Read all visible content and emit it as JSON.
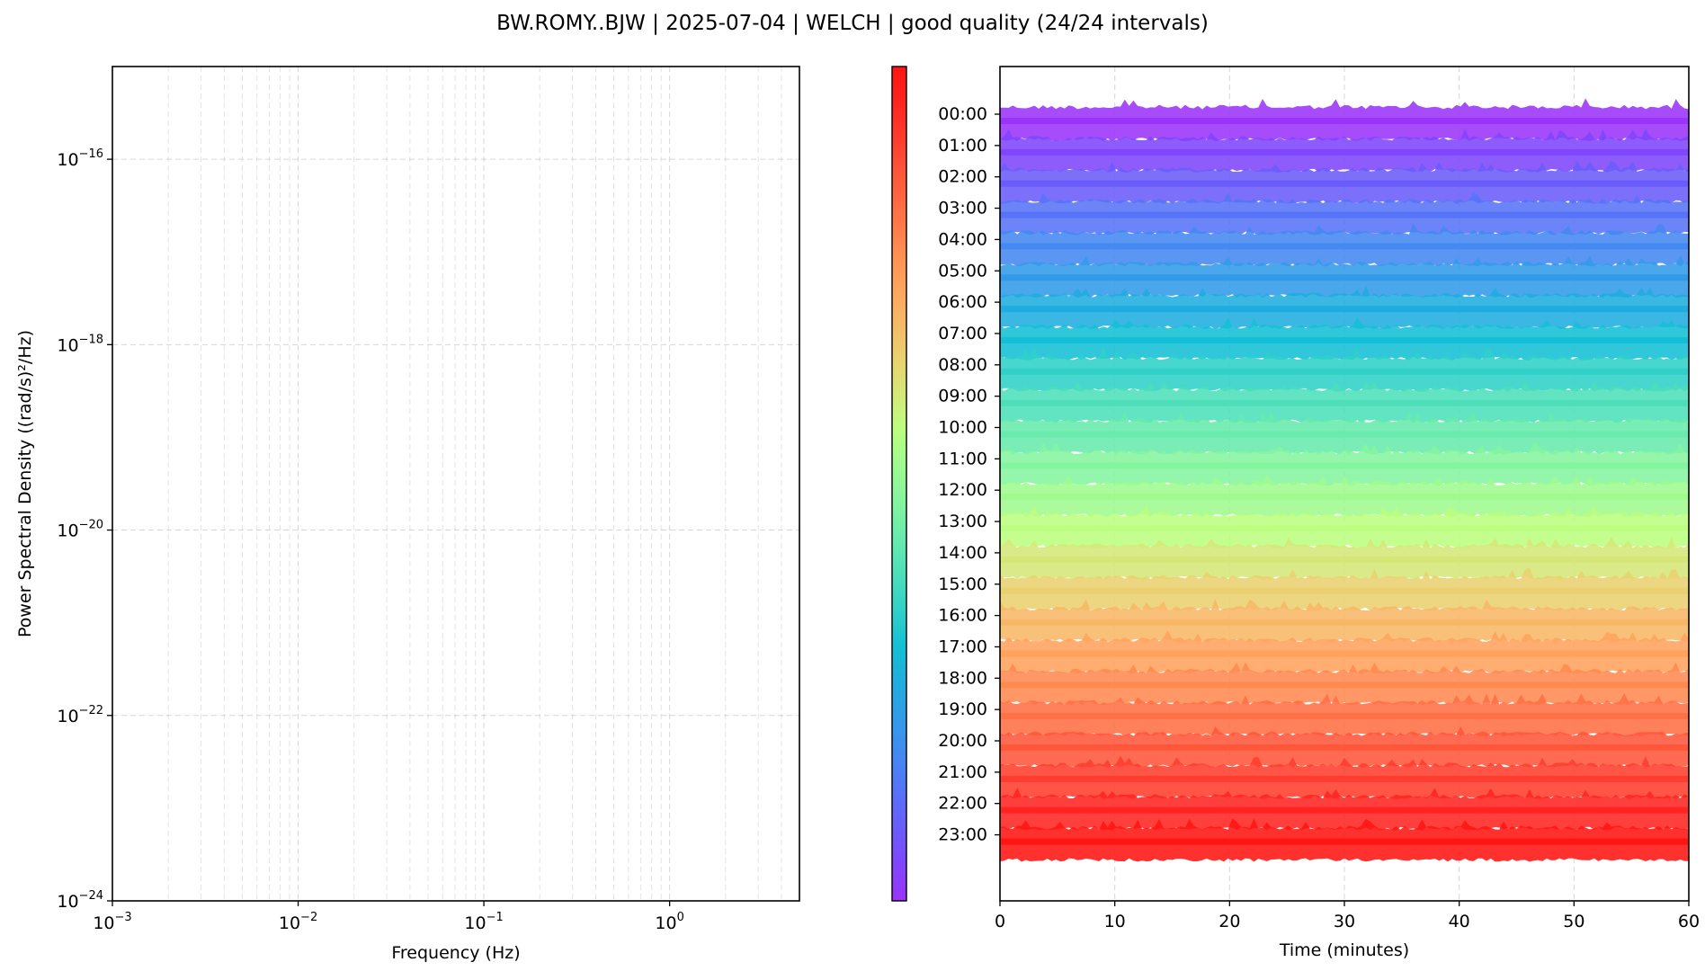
{
  "title": "BW.ROMY..BJW | 2025-07-04 | WELCH | good quality (24/24 intervals)",
  "chart_data": [
    {
      "type": "line",
      "panel": "psd",
      "xlabel": "Frequency (Hz)",
      "ylabel": "Power Spectral Density ((rad/s)²/Hz)",
      "x_scale": "log",
      "y_scale": "log",
      "xlim": [
        0.001,
        5
      ],
      "ylim": [
        1e-24,
        1e-15
      ],
      "x_ticks": [
        {
          "value": 0.001,
          "base": "10",
          "exp": "−3"
        },
        {
          "value": 0.01,
          "base": "10",
          "exp": "−2"
        },
        {
          "value": 0.1,
          "base": "10",
          "exp": "−1"
        },
        {
          "value": 1,
          "base": "10",
          "exp": "0"
        }
      ],
      "y_ticks": [
        {
          "value": 1e-16,
          "base": "10",
          "exp": "−16"
        },
        {
          "value": 1e-18,
          "base": "10",
          "exp": "−18"
        },
        {
          "value": 1e-20,
          "base": "10",
          "exp": "−20"
        },
        {
          "value": 1e-22,
          "base": "10",
          "exp": "−22"
        },
        {
          "value": 1e-24,
          "base": "10",
          "exp": "−24"
        }
      ],
      "grid": true,
      "series": []
    },
    {
      "type": "area",
      "panel": "hourly-traces",
      "xlabel": "Time (minutes)",
      "xlim": [
        0,
        60
      ],
      "x_ticks": [
        0,
        10,
        20,
        30,
        40,
        50,
        60
      ],
      "grid": true,
      "colormap": "rainbow",
      "colorbar": true,
      "hour_labels": [
        "00:00",
        "01:00",
        "02:00",
        "03:00",
        "04:00",
        "05:00",
        "06:00",
        "07:00",
        "08:00",
        "09:00",
        "10:00",
        "11:00",
        "12:00",
        "13:00",
        "14:00",
        "15:00",
        "16:00",
        "17:00",
        "18:00",
        "19:00",
        "20:00",
        "21:00",
        "22:00",
        "23:00"
      ],
      "band_colors": [
        "#9a33fb",
        "#8046fc",
        "#6a5cfb",
        "#5773f7",
        "#4488f1",
        "#329be9",
        "#1faddf",
        "#14bfd5",
        "#2fd1c8",
        "#4cdfba",
        "#68ebac",
        "#84f59e",
        "#9ffa90",
        "#bbfe80",
        "#d6e778",
        "#ead06f",
        "#f8b766",
        "#ffa25c",
        "#ff8a51",
        "#ff7046",
        "#ff573a",
        "#ff3d2e",
        "#ff2420",
        "#ff1412"
      ]
    }
  ]
}
